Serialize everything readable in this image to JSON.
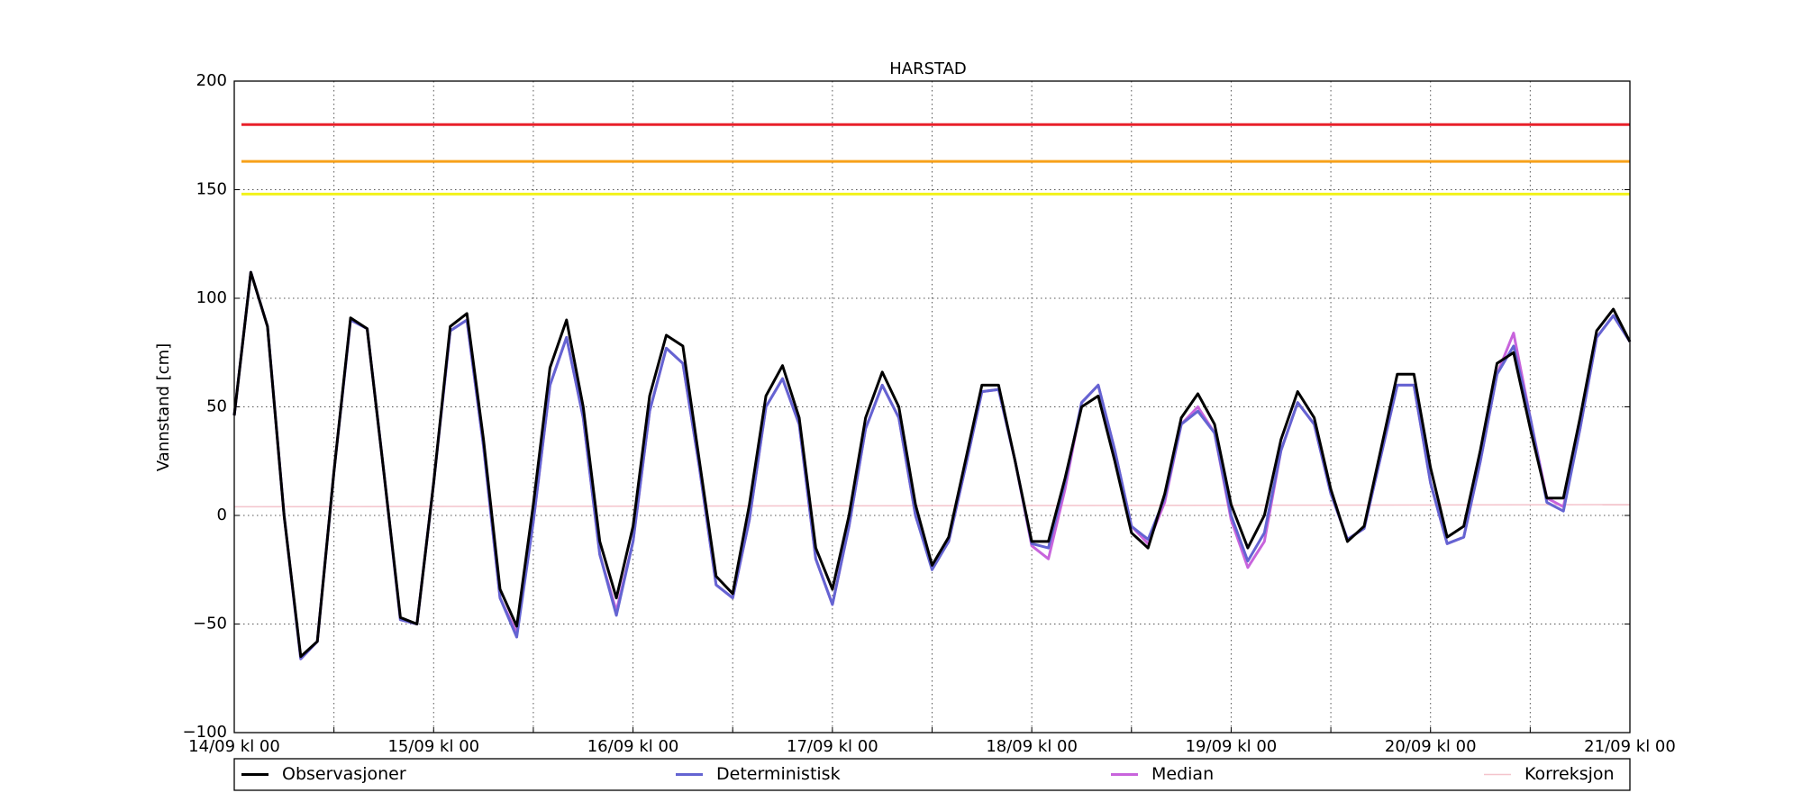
{
  "chart_data": {
    "type": "line",
    "title": "HARSTAD",
    "ylabel": "Vannstand [cm]",
    "xlim": [
      0,
      168
    ],
    "xticks": [
      {
        "value": 0,
        "label": "14/09 kl 00"
      },
      {
        "value": 24,
        "label": "15/09 kl 00"
      },
      {
        "value": 48,
        "label": "16/09 kl 00"
      },
      {
        "value": 72,
        "label": "17/09 kl 00"
      },
      {
        "value": 96,
        "label": "18/09 kl 00"
      },
      {
        "value": 120,
        "label": "19/09 kl 00"
      },
      {
        "value": 144,
        "label": "20/09 kl 00"
      },
      {
        "value": 168,
        "label": "21/09 kl 00"
      }
    ],
    "xminor_ticks": [
      12,
      36,
      60,
      84,
      108,
      132,
      156
    ],
    "ylim": [
      -100,
      200
    ],
    "yticks": [
      {
        "value": -100,
        "label": "−100"
      },
      {
        "value": -50,
        "label": "−50"
      },
      0,
      50,
      100,
      150,
      200
    ],
    "grid": true,
    "legend": "bottom",
    "reference_lines": [
      {
        "value": 180,
        "color": "#e8202a"
      },
      {
        "value": 163,
        "color": "#f7a11a"
      },
      {
        "value": 148,
        "color": "#f2f21a"
      }
    ],
    "x": [
      0,
      2,
      4,
      6,
      8,
      10,
      12,
      14,
      16,
      18,
      20,
      22,
      24,
      26,
      28,
      30,
      32,
      34,
      36,
      38,
      40,
      42,
      44,
      46,
      48,
      50,
      52,
      54,
      56,
      58,
      60,
      62,
      64,
      66,
      68,
      70,
      72,
      74,
      76,
      78,
      80,
      82,
      84,
      86,
      88,
      90,
      92,
      94,
      96,
      98,
      100,
      102,
      104,
      106,
      108,
      110,
      112,
      114,
      116,
      118,
      120,
      122,
      124,
      126,
      128,
      130,
      132,
      134,
      136,
      138,
      140,
      142,
      144,
      146,
      148,
      150,
      152,
      154,
      156,
      158,
      160,
      162,
      164,
      166,
      168
    ],
    "series": [
      {
        "name": "Observasjoner",
        "color": "#000000",
        "values": [
          46,
          112,
          87,
          0,
          -65,
          -58,
          20,
          91,
          86,
          20,
          -47,
          -50,
          15,
          87,
          93,
          35,
          -34,
          -51,
          5,
          68,
          90,
          50,
          -12,
          -38,
          -5,
          55,
          83,
          78,
          25,
          -28,
          -36,
          5,
          55,
          69,
          45,
          -15,
          -34,
          0,
          45,
          66,
          50,
          5,
          -23,
          -10,
          25,
          60,
          60,
          25,
          -12,
          -12,
          17,
          50,
          55,
          25,
          -8,
          -15,
          10,
          45,
          56,
          42,
          5,
          -15,
          0,
          35,
          57,
          45,
          12,
          -12,
          -5,
          30,
          65,
          65,
          22,
          -10,
          -5,
          30,
          70,
          75,
          40,
          8,
          8,
          45,
          85,
          95,
          80
        ]
      },
      {
        "name": "Deterministisk",
        "color": "#6464d2",
        "values": [
          46,
          112,
          87,
          0,
          -66,
          -58,
          20,
          90,
          86,
          20,
          -48,
          -50,
          15,
          85,
          90,
          32,
          -38,
          -56,
          -3,
          60,
          82,
          45,
          -18,
          -46,
          -12,
          48,
          77,
          70,
          22,
          -32,
          -38,
          -2,
          50,
          63,
          42,
          -20,
          -41,
          -5,
          40,
          60,
          45,
          0,
          -25,
          -12,
          22,
          57,
          58,
          25,
          -13,
          -15,
          15,
          52,
          60,
          30,
          -5,
          -11,
          8,
          42,
          48,
          38,
          0,
          -21,
          -8,
          30,
          52,
          42,
          10,
          -11,
          -6,
          27,
          60,
          60,
          15,
          -13,
          -10,
          25,
          65,
          78,
          45,
          6,
          2,
          40,
          82,
          92,
          80
        ]
      },
      {
        "name": "Median",
        "color": "#c864dc",
        "values": [
          46,
          112,
          87,
          0,
          -66,
          -58,
          20,
          90,
          86,
          20,
          -48,
          -50,
          15,
          85,
          90,
          32,
          -38,
          -54,
          -3,
          60,
          82,
          45,
          -18,
          -44,
          -12,
          48,
          77,
          70,
          22,
          -32,
          -38,
          -2,
          50,
          63,
          42,
          -20,
          -41,
          -5,
          40,
          60,
          45,
          0,
          -24,
          -12,
          22,
          57,
          58,
          25,
          -14,
          -20,
          12,
          52,
          60,
          30,
          -5,
          -13,
          6,
          42,
          50,
          38,
          -2,
          -24,
          -12,
          30,
          52,
          42,
          10,
          -11,
          -6,
          27,
          60,
          60,
          15,
          -13,
          -10,
          25,
          65,
          84,
          45,
          8,
          4,
          40,
          82,
          92,
          80
        ]
      },
      {
        "name": "Korreksjon",
        "color": "#f4c4cc",
        "x": [
          0,
          168
        ],
        "values": [
          4,
          5
        ]
      }
    ]
  }
}
